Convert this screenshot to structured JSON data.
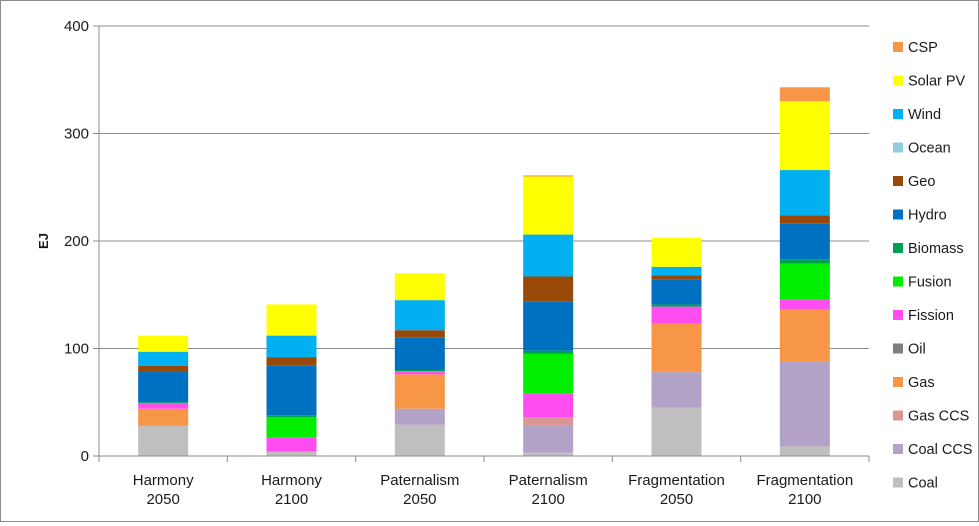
{
  "chart_data": {
    "type": "bar",
    "stacked": true,
    "title": "",
    "xlabel": "",
    "ylabel": "EJ",
    "ylim": [
      0,
      400
    ],
    "yticks": [
      0,
      100,
      200,
      300,
      400
    ],
    "grid": true,
    "legend_position": "right",
    "categories": [
      [
        "Harmony",
        "2050"
      ],
      [
        "Harmony",
        "2100"
      ],
      [
        "Paternalism",
        "2050"
      ],
      [
        "Paternalism",
        "2100"
      ],
      [
        "Fragmentation",
        "2050"
      ],
      [
        "Fragmentation",
        "2100"
      ]
    ],
    "series": [
      {
        "name": "Coal",
        "color": "#bfbfbf",
        "values": [
          28,
          4,
          29,
          3,
          45,
          9
        ]
      },
      {
        "name": "Coal CCS",
        "color": "#b3a2c7",
        "values": [
          0,
          0,
          15,
          25,
          33,
          79
        ]
      },
      {
        "name": "Gas CCS",
        "color": "#d99694",
        "values": [
          0,
          0,
          0,
          8,
          0,
          0
        ]
      },
      {
        "name": "Gas",
        "color": "#f79646",
        "values": [
          16,
          0,
          32,
          0,
          45,
          48
        ]
      },
      {
        "name": "Oil",
        "color": "#7f7f7f",
        "values": [
          0,
          0,
          0,
          0,
          0,
          0
        ]
      },
      {
        "name": "Fission",
        "color": "#ff4df0",
        "values": [
          5,
          13,
          3,
          22,
          16,
          10
        ]
      },
      {
        "name": "Fusion",
        "color": "#00ee00",
        "values": [
          0,
          19,
          0,
          37,
          0,
          33
        ]
      },
      {
        "name": "Biomass",
        "color": "#00a050",
        "values": [
          1,
          2,
          1,
          3,
          2,
          4
        ]
      },
      {
        "name": "Hydro",
        "color": "#0070c0",
        "values": [
          29,
          46,
          30,
          46,
          23,
          33
        ]
      },
      {
        "name": "Geo",
        "color": "#984807",
        "values": [
          5,
          8,
          7,
          23,
          4,
          8
        ]
      },
      {
        "name": "Ocean",
        "color": "#92cddc",
        "values": [
          0,
          0,
          0,
          0,
          0,
          0
        ]
      },
      {
        "name": "Wind",
        "color": "#00b0f0",
        "values": [
          13,
          20,
          28,
          39,
          8,
          42
        ]
      },
      {
        "name": "Solar PV",
        "color": "#ffff00",
        "values": [
          15,
          29,
          25,
          54,
          27,
          64
        ]
      },
      {
        "name": "CSP",
        "color": "#f79646",
        "values": [
          0,
          0,
          0,
          1,
          0,
          13
        ]
      }
    ]
  }
}
